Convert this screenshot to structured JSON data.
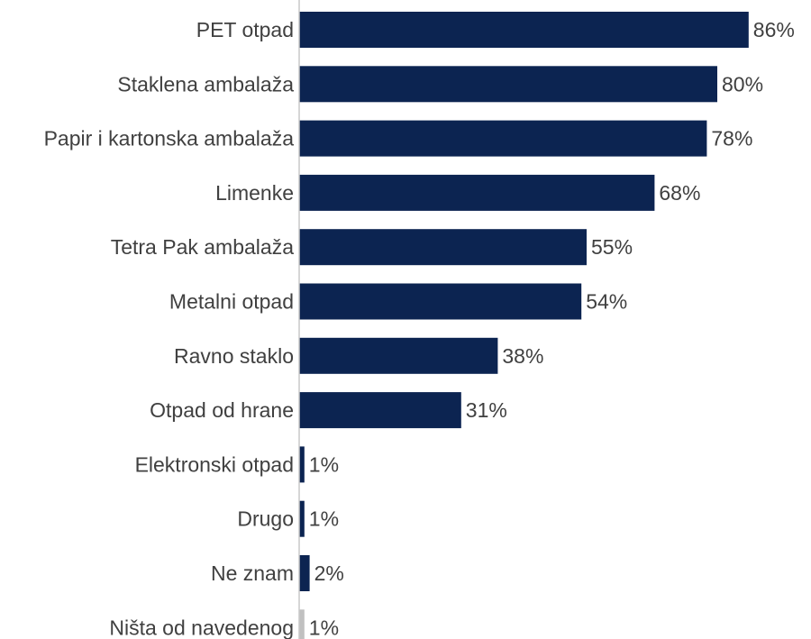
{
  "chart_data": {
    "type": "bar",
    "orientation": "horizontal",
    "categories": [
      "PET otpad",
      "Staklena ambalaža",
      "Papir i kartonska ambalaža",
      "Limenke",
      "Tetra Pak ambalaža",
      "Metalni otpad",
      "Ravno staklo",
      "Otpad od hrane",
      "Elektronski otpad",
      "Drugo",
      "Ne znam",
      "Ništa od navedenog"
    ],
    "values": [
      86,
      80,
      78,
      68,
      55,
      54,
      38,
      31,
      1,
      1,
      2,
      1
    ],
    "value_labels": [
      "86%",
      "80%",
      "78%",
      "68%",
      "55%",
      "54%",
      "38%",
      "31%",
      "1%",
      "1%",
      "2%",
      "1%"
    ],
    "bar_colors": [
      "#0c2451",
      "#0c2451",
      "#0c2451",
      "#0c2451",
      "#0c2451",
      "#0c2451",
      "#0c2451",
      "#0c2451",
      "#0c2451",
      "#0c2451",
      "#0c2451",
      "#c0c0c0"
    ],
    "axis_color": "#c8c8c8",
    "xlim": [
      0,
      100
    ],
    "title": "",
    "xlabel": "",
    "ylabel": "",
    "grid": false,
    "legend": "none"
  }
}
